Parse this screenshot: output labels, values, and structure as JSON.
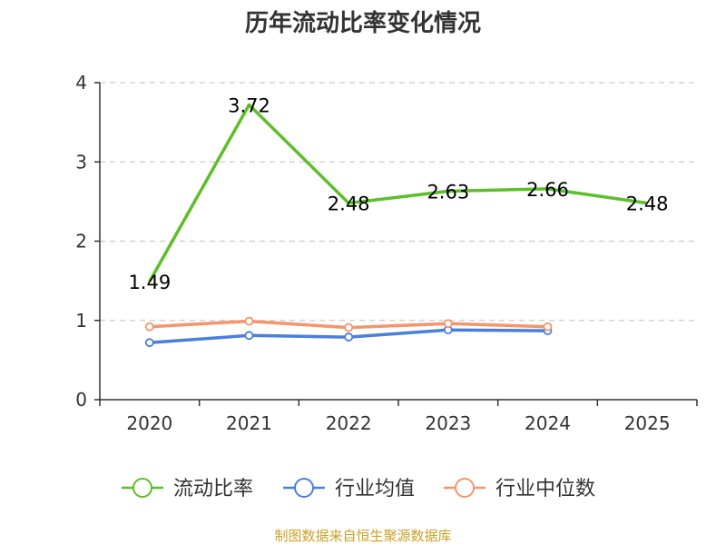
{
  "chart_data": {
    "type": "line",
    "title": "历年流动比率变化情况",
    "categories": [
      "2020",
      "2021",
      "2022",
      "2023",
      "2024",
      "2025"
    ],
    "ylim": [
      0,
      4
    ],
    "yticks": [
      "0",
      "1",
      "2",
      "3",
      "4"
    ],
    "xlabel": "",
    "ylabel": "",
    "grid": true,
    "legend_position": "bottom",
    "series": [
      {
        "name": "流动比率",
        "color": "#5cbf2a",
        "values": [
          1.49,
          3.72,
          2.48,
          2.63,
          2.66,
          2.48
        ],
        "data_labels": [
          "1.49",
          "3.72",
          "2.48",
          "2.63",
          "2.66",
          "2.48"
        ],
        "show_markers": false
      },
      {
        "name": "行业均值",
        "color": "#4a7fdc",
        "values": [
          0.72,
          0.81,
          0.79,
          0.88,
          0.87,
          null
        ],
        "show_markers": true
      },
      {
        "name": "行业中位数",
        "color": "#f5956a",
        "values": [
          0.92,
          0.99,
          0.91,
          0.96,
          0.92,
          null
        ],
        "show_markers": true
      }
    ]
  },
  "source": "制图数据来自恒生聚源数据库"
}
